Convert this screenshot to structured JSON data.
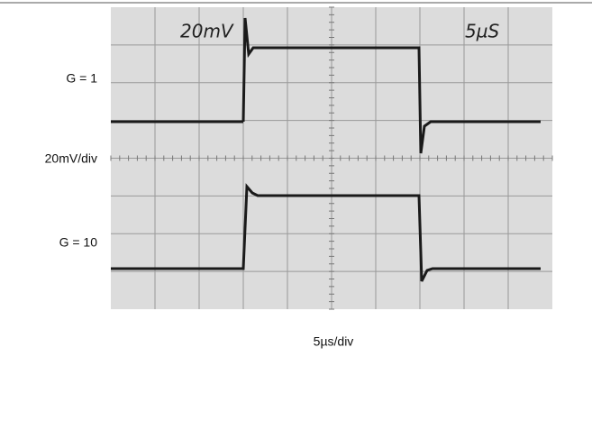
{
  "figure": {
    "screen": {
      "volts_setting": "20mV",
      "time_setting": "5µS"
    },
    "labels": {
      "top_trace": "G = 1",
      "vertical_scale": "20mV/div",
      "bottom_trace": "G = 10",
      "horizontal_scale": "5µs/div"
    }
  }
}
